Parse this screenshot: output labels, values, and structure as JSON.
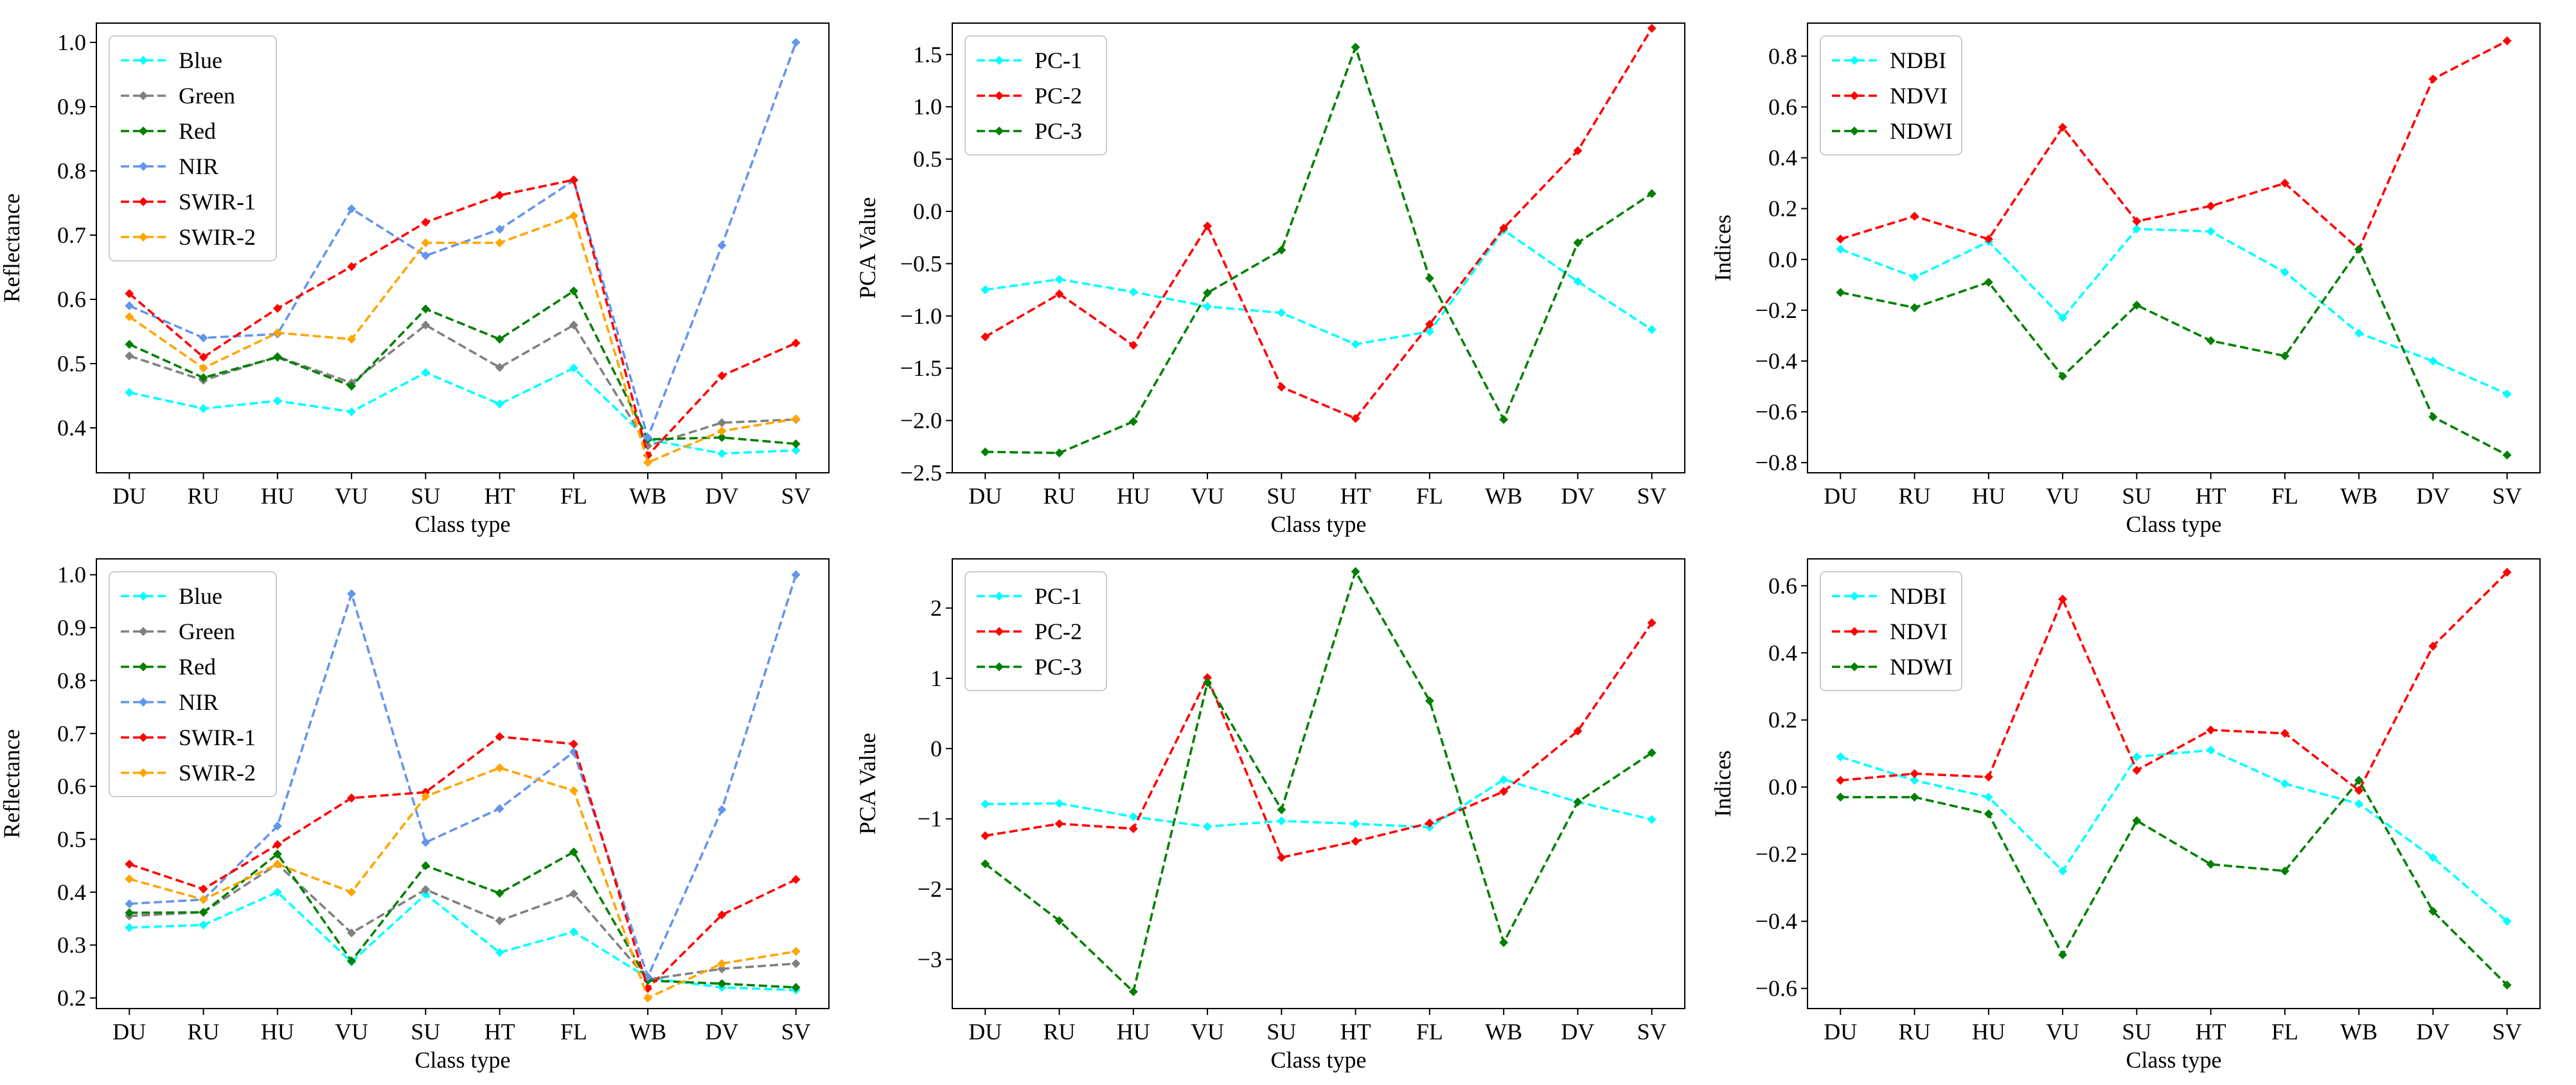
{
  "figure": {
    "name": "spectral-pca-indices-figure"
  },
  "chart_data": [
    {
      "type": "line",
      "row": "top",
      "col": "left",
      "xlabel": "Class type",
      "ylabel": "Reflectance",
      "categories": [
        "DU",
        "RU",
        "HU",
        "VU",
        "SU",
        "HT",
        "FL",
        "WB",
        "DV",
        "SV"
      ],
      "ylim": [
        0.33,
        1.03
      ],
      "yticks": [
        "0.4",
        "0.5",
        "0.6",
        "0.7",
        "0.8",
        "0.9",
        "1.0"
      ],
      "legend_position": "upper-left",
      "series": [
        {
          "name": "Blue",
          "color": "#00FFFF",
          "values": [
            0.455,
            0.43,
            0.442,
            0.425,
            0.486,
            0.437,
            0.493,
            0.382,
            0.36,
            0.365
          ]
        },
        {
          "name": "Green",
          "color": "#808080",
          "values": [
            0.512,
            0.474,
            0.511,
            0.47,
            0.56,
            0.494,
            0.56,
            0.372,
            0.408,
            0.413
          ]
        },
        {
          "name": "Red",
          "color": "#008000",
          "values": [
            0.53,
            0.478,
            0.51,
            0.465,
            0.585,
            0.538,
            0.613,
            0.382,
            0.385,
            0.375
          ]
        },
        {
          "name": "NIR",
          "color": "#6495ED",
          "values": [
            0.59,
            0.54,
            0.546,
            0.741,
            0.668,
            0.709,
            0.785,
            0.385,
            0.684,
            1.0
          ]
        },
        {
          "name": "SWIR-1",
          "color": "#FF0000",
          "values": [
            0.609,
            0.51,
            0.586,
            0.651,
            0.72,
            0.762,
            0.786,
            0.357,
            0.481,
            0.532
          ]
        },
        {
          "name": "SWIR-2",
          "color": "#FFA500",
          "values": [
            0.573,
            0.493,
            0.548,
            0.538,
            0.688,
            0.688,
            0.73,
            0.346,
            0.395,
            0.414
          ]
        }
      ]
    },
    {
      "type": "line",
      "row": "top",
      "col": "middle",
      "xlabel": "Class type",
      "ylabel": "PCA Value",
      "categories": [
        "DU",
        "RU",
        "HU",
        "VU",
        "SU",
        "HT",
        "FL",
        "WB",
        "DV",
        "SV"
      ],
      "ylim": [
        -2.5,
        1.8
      ],
      "yticks": [
        "−2.5",
        "−2.0",
        "−1.5",
        "−1.0",
        "−0.5",
        "0.0",
        "0.5",
        "1.0",
        "1.5"
      ],
      "legend_position": "upper-left",
      "series": [
        {
          "name": "PC-1",
          "color": "#00FFFF",
          "values": [
            -0.75,
            -0.65,
            -0.77,
            -0.91,
            -0.97,
            -1.27,
            -1.15,
            -0.18,
            -0.67,
            -1.13
          ]
        },
        {
          "name": "PC-2",
          "color": "#FF0000",
          "values": [
            -1.2,
            -0.79,
            -1.28,
            -0.14,
            -1.68,
            -1.98,
            -1.08,
            -0.16,
            0.58,
            1.75
          ]
        },
        {
          "name": "PC-3",
          "color": "#008000",
          "values": [
            -2.3,
            -2.31,
            -2.01,
            -0.78,
            -0.37,
            1.57,
            -0.64,
            -1.99,
            -0.3,
            0.17
          ]
        }
      ]
    },
    {
      "type": "line",
      "row": "top",
      "col": "right",
      "xlabel": "Class type",
      "ylabel": "Indices",
      "categories": [
        "DU",
        "RU",
        "HU",
        "VU",
        "SU",
        "HT",
        "FL",
        "WB",
        "DV",
        "SV"
      ],
      "ylim": [
        -0.84,
        0.93
      ],
      "yticks": [
        "−0.8",
        "−0.6",
        "−0.4",
        "−0.2",
        "0.0",
        "0.2",
        "0.4",
        "0.6",
        "0.8"
      ],
      "legend_position": "upper-left",
      "series": [
        {
          "name": "NDBI",
          "color": "#00FFFF",
          "values": [
            0.04,
            -0.07,
            0.07,
            -0.23,
            0.12,
            0.11,
            -0.05,
            -0.29,
            -0.4,
            -0.53
          ]
        },
        {
          "name": "NDVI",
          "color": "#FF0000",
          "values": [
            0.08,
            0.17,
            0.08,
            0.52,
            0.15,
            0.21,
            0.3,
            0.04,
            0.71,
            0.86
          ]
        },
        {
          "name": "NDWI",
          "color": "#008000",
          "values": [
            -0.13,
            -0.19,
            -0.09,
            -0.46,
            -0.18,
            -0.32,
            -0.38,
            0.04,
            -0.62,
            -0.77
          ]
        }
      ]
    },
    {
      "type": "line",
      "row": "bottom",
      "col": "left",
      "xlabel": "Class type",
      "ylabel": "Reflectance",
      "categories": [
        "DU",
        "RU",
        "HU",
        "VU",
        "SU",
        "HT",
        "FL",
        "WB",
        "DV",
        "SV"
      ],
      "ylim": [
        0.18,
        1.03
      ],
      "yticks": [
        "0.2",
        "0.3",
        "0.4",
        "0.5",
        "0.6",
        "0.7",
        "0.8",
        "0.9",
        "1.0"
      ],
      "legend_position": "upper-left",
      "series": [
        {
          "name": "Blue",
          "color": "#00FFFF",
          "values": [
            0.333,
            0.338,
            0.4,
            0.268,
            0.396,
            0.286,
            0.325,
            0.238,
            0.22,
            0.215
          ]
        },
        {
          "name": "Green",
          "color": "#808080",
          "values": [
            0.355,
            0.362,
            0.453,
            0.323,
            0.405,
            0.346,
            0.397,
            0.235,
            0.255,
            0.265
          ]
        },
        {
          "name": "Red",
          "color": "#008000",
          "values": [
            0.361,
            0.362,
            0.472,
            0.27,
            0.45,
            0.398,
            0.476,
            0.233,
            0.227,
            0.22
          ]
        },
        {
          "name": "NIR",
          "color": "#6495ED",
          "values": [
            0.378,
            0.386,
            0.525,
            0.964,
            0.494,
            0.558,
            0.665,
            0.24,
            0.556,
            1.0
          ]
        },
        {
          "name": "SWIR-1",
          "color": "#FF0000",
          "values": [
            0.453,
            0.406,
            0.49,
            0.578,
            0.589,
            0.694,
            0.68,
            0.218,
            0.357,
            0.424
          ]
        },
        {
          "name": "SWIR-2",
          "color": "#FFA500",
          "values": [
            0.425,
            0.386,
            0.453,
            0.4,
            0.581,
            0.635,
            0.592,
            0.2,
            0.265,
            0.288
          ]
        }
      ]
    },
    {
      "type": "line",
      "row": "bottom",
      "col": "middle",
      "xlabel": "Class type",
      "ylabel": "PCA Value",
      "categories": [
        "DU",
        "RU",
        "HU",
        "VU",
        "SU",
        "HT",
        "FL",
        "WB",
        "DV",
        "SV"
      ],
      "ylim": [
        -3.7,
        2.7
      ],
      "yticks": [
        "−3",
        "−2",
        "−1",
        "0",
        "1",
        "2"
      ],
      "legend_position": "upper-left",
      "series": [
        {
          "name": "PC-1",
          "color": "#00FFFF",
          "values": [
            -0.79,
            -0.78,
            -0.97,
            -1.11,
            -1.03,
            -1.07,
            -1.12,
            -0.44,
            -0.76,
            -1.01
          ]
        },
        {
          "name": "PC-2",
          "color": "#FF0000",
          "values": [
            -1.24,
            -1.07,
            -1.14,
            1.01,
            -1.55,
            -1.32,
            -1.06,
            -0.61,
            0.25,
            1.79
          ]
        },
        {
          "name": "PC-3",
          "color": "#008000",
          "values": [
            -1.64,
            -2.45,
            -3.46,
            0.94,
            -0.87,
            2.52,
            0.68,
            -2.76,
            -0.76,
            -0.06
          ]
        }
      ]
    },
    {
      "type": "line",
      "row": "bottom",
      "col": "right",
      "xlabel": "Class type",
      "ylabel": "Indices",
      "categories": [
        "DU",
        "RU",
        "HU",
        "VU",
        "SU",
        "HT",
        "FL",
        "WB",
        "DV",
        "SV"
      ],
      "ylim": [
        -0.66,
        0.68
      ],
      "yticks": [
        "−0.6",
        "−0.4",
        "−0.2",
        "0.0",
        "0.2",
        "0.4",
        "0.6"
      ],
      "legend_position": "upper-left",
      "series": [
        {
          "name": "NDBI",
          "color": "#00FFFF",
          "values": [
            0.09,
            0.02,
            -0.03,
            -0.25,
            0.09,
            0.11,
            0.01,
            -0.05,
            -0.21,
            -0.4
          ]
        },
        {
          "name": "NDVI",
          "color": "#FF0000",
          "values": [
            0.02,
            0.04,
            0.03,
            0.56,
            0.05,
            0.17,
            0.16,
            -0.01,
            0.42,
            0.64
          ]
        },
        {
          "name": "NDWI",
          "color": "#008000",
          "values": [
            -0.03,
            -0.03,
            -0.08,
            -0.5,
            -0.1,
            -0.23,
            -0.25,
            0.02,
            -0.37,
            -0.59
          ]
        }
      ]
    }
  ]
}
